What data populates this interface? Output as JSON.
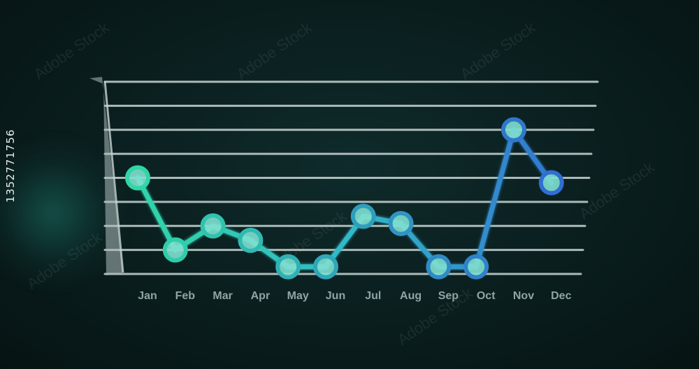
{
  "image_id": {
    "text": "1352771756"
  },
  "watermark": {
    "text": "Adobe Stock"
  },
  "colors": {
    "background": "#0b2020",
    "grid": "#c9d6d4",
    "start": "#2fd6a6",
    "end": "#2f6fd0"
  },
  "chart_data": {
    "type": "line",
    "categories": [
      "Jan",
      "Feb",
      "Mar",
      "Apr",
      "May",
      "Jun",
      "Jul",
      "Aug",
      "Sep",
      "Oct",
      "Nov",
      "Dec"
    ],
    "values": [
      4,
      1,
      2,
      1.4,
      0.3,
      0.3,
      2.4,
      2.1,
      0.3,
      0.3,
      6,
      3.8
    ],
    "point_labels": [
      "",
      "",
      "",
      "",
      "",
      "",
      "",
      "",
      "",
      "",
      "",
      ""
    ],
    "title": "",
    "xlabel": "",
    "ylabel": "",
    "ylim": [
      0,
      8
    ],
    "grid": true,
    "legend": "none"
  }
}
